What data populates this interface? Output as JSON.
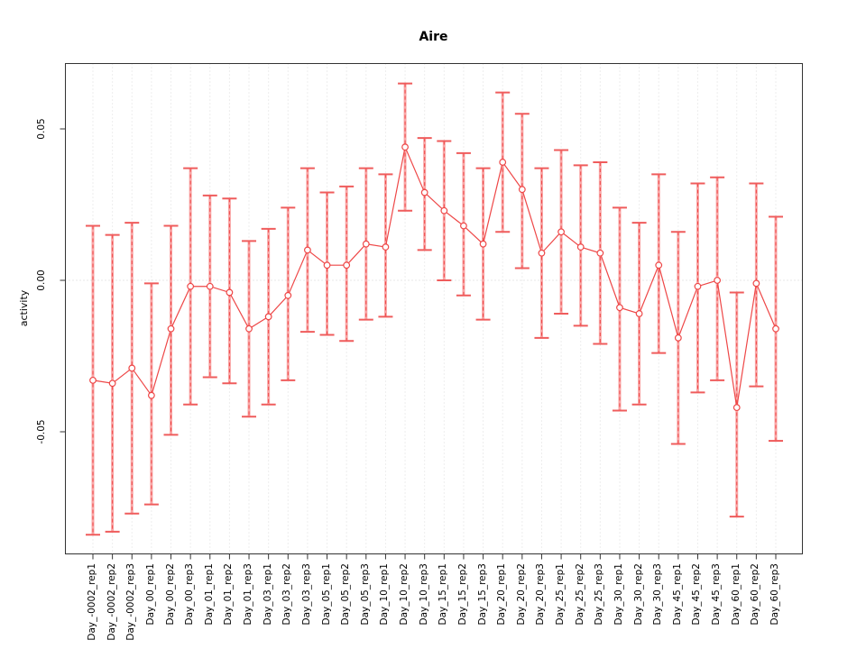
{
  "chart_data": {
    "type": "line",
    "title": "Aire",
    "xlabel": "",
    "ylabel": "activity",
    "ylim": [
      -0.09,
      0.072
    ],
    "grid": "vertical dotted gridline at every category; dotted horizontal line at y=0",
    "legend_position": "none",
    "marker": "open-circle",
    "error_bars": true,
    "yticks": [
      {
        "value": -0.05,
        "label": "-0.05"
      },
      {
        "value": 0.0,
        "label": "0.00"
      },
      {
        "value": 0.05,
        "label": "0.05"
      }
    ],
    "categories": [
      "Day_-0002_rep1",
      "Day_-0002_rep2",
      "Day_-0002_rep3",
      "Day_00_rep1",
      "Day_00_rep2",
      "Day_00_rep3",
      "Day_01_rep1",
      "Day_01_rep2",
      "Day_01_rep3",
      "Day_03_rep1",
      "Day_03_rep2",
      "Day_03_rep3",
      "Day_05_rep1",
      "Day_05_rep2",
      "Day_05_rep3",
      "Day_10_rep1",
      "Day_10_rep2",
      "Day_10_rep3",
      "Day_15_rep1",
      "Day_15_rep2",
      "Day_15_rep3",
      "Day_20_rep1",
      "Day_20_rep2",
      "Day_20_rep3",
      "Day_25_rep1",
      "Day_25_rep2",
      "Day_25_rep3",
      "Day_30_rep1",
      "Day_30_rep2",
      "Day_30_rep3",
      "Day_45_rep1",
      "Day_45_rep2",
      "Day_45_rep3",
      "Day_60_rep1",
      "Day_60_rep2",
      "Day_60_rep3"
    ],
    "series": [
      {
        "name": "activity",
        "values": [
          -0.033,
          -0.034,
          -0.029,
          -0.038,
          -0.016,
          -0.002,
          -0.002,
          -0.004,
          -0.016,
          -0.012,
          -0.005,
          0.01,
          0.005,
          0.005,
          0.012,
          0.011,
          0.044,
          0.029,
          0.023,
          0.018,
          0.012,
          0.039,
          0.03,
          0.009,
          0.016,
          0.011,
          0.009,
          -0.009,
          -0.011,
          0.005,
          -0.019,
          -0.002,
          0.0,
          -0.042,
          -0.001,
          -0.016
        ],
        "ci_low": [
          -0.084,
          -0.083,
          -0.077,
          -0.074,
          -0.051,
          -0.041,
          -0.032,
          -0.034,
          -0.045,
          -0.041,
          -0.033,
          -0.017,
          -0.018,
          -0.02,
          -0.013,
          -0.012,
          0.023,
          0.01,
          0.0,
          -0.005,
          -0.013,
          0.016,
          0.004,
          -0.019,
          -0.011,
          -0.015,
          -0.021,
          -0.043,
          -0.041,
          -0.024,
          -0.054,
          -0.037,
          -0.033,
          -0.078,
          -0.035,
          -0.053
        ],
        "ci_high": [
          0.018,
          0.015,
          0.019,
          -0.001,
          0.018,
          0.037,
          0.028,
          0.027,
          0.013,
          0.017,
          0.024,
          0.037,
          0.029,
          0.031,
          0.037,
          0.035,
          0.065,
          0.047,
          0.046,
          0.042,
          0.037,
          0.062,
          0.055,
          0.037,
          0.043,
          0.038,
          0.039,
          0.024,
          0.019,
          0.035,
          0.016,
          0.032,
          0.034,
          -0.004,
          0.032,
          0.021
        ]
      }
    ],
    "colors": {
      "series_line": "#ee4747",
      "marker_stroke": "#ee4747",
      "marker_fill": "#ffffff",
      "error_bar_fill": "#f9a6a6",
      "error_bar_dash": "#ee4747",
      "error_bar_cap": "#ef5c5c",
      "grid_line": "#dcdcdc",
      "zero_line": "#cfcfcf",
      "axis": "#333333",
      "text": "#000000"
    }
  }
}
